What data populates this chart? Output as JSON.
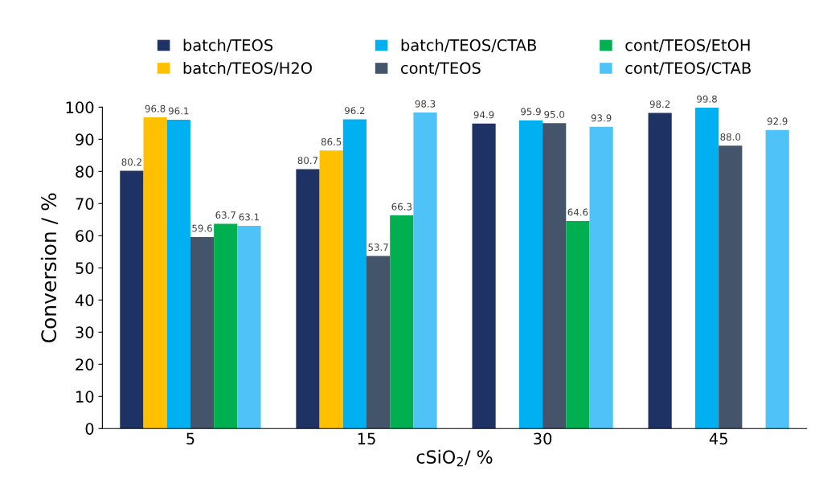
{
  "chart_data": {
    "type": "bar",
    "xlabel": "cSiO$_{2}$/ %",
    "ylabel": "Conversion / %",
    "categories": [
      "5",
      "15",
      "30",
      "45"
    ],
    "series": [
      {
        "name": "batch/TEOS",
        "color": "#1f3264",
        "values": [
          80.2,
          80.7,
          94.9,
          98.2
        ],
        "value_labels": [
          "80.2",
          "80.7",
          "94.9",
          "98.2"
        ]
      },
      {
        "name": "batch/TEOS/H2O",
        "color": "#ffc000",
        "values": [
          96.8,
          86.5,
          null,
          null
        ],
        "value_labels": [
          "96.8",
          "86.5",
          null,
          null
        ]
      },
      {
        "name": "batch/TEOS/CTAB",
        "color": "#00b0f0",
        "values": [
          96.1,
          96.2,
          95.9,
          99.8
        ],
        "value_labels": [
          "96.1",
          "96.2",
          "95.9",
          "99.8"
        ]
      },
      {
        "name": "cont/TEOS",
        "color": "#44546a",
        "values": [
          59.6,
          53.7,
          95.0,
          88.0
        ],
        "value_labels": [
          "59.6",
          "53.7",
          "95.0",
          "88.0"
        ]
      },
      {
        "name": "cont/TEOS/EtOH",
        "color": "#00b050",
        "values": [
          63.7,
          66.3,
          64.6,
          null
        ],
        "value_labels": [
          "63.7",
          "66.3",
          "64.6",
          null
        ]
      },
      {
        "name": "cont/TEOS/CTAB",
        "color": "#4fc3f7",
        "values": [
          63.1,
          98.3,
          93.9,
          92.9
        ],
        "value_labels": [
          "63.1",
          "98.3",
          "93.9",
          "92.9"
        ]
      }
    ],
    "ylim": [
      0,
      100
    ],
    "yticks": [
      0,
      10,
      20,
      30,
      40,
      50,
      60,
      70,
      80,
      90,
      100
    ],
    "grid": false,
    "legend": "top"
  }
}
